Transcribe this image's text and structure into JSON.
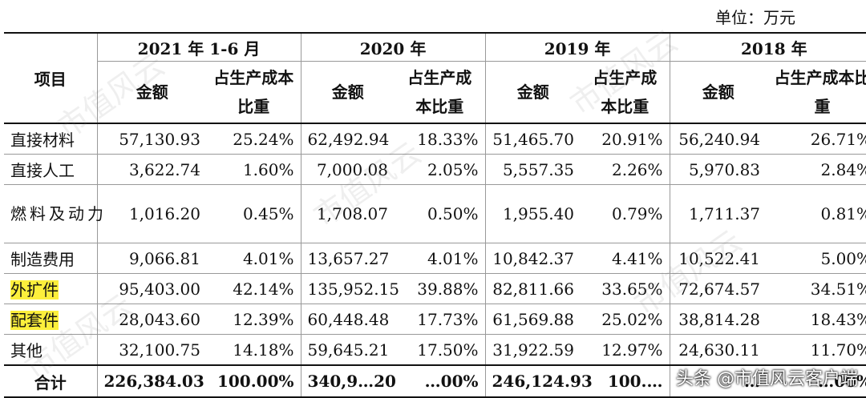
{
  "unit_label": "单位：万元",
  "header": {
    "item_label": "项目",
    "periods": [
      "2021 年 1-6 月",
      "2020 年",
      "2019 年",
      "2018 年"
    ],
    "amount_label": "金额",
    "ratio_label": "占生产成本比重"
  },
  "rows": [
    {
      "name": "直接材料",
      "values": [
        "57,130.93",
        "25.24%",
        "62,492.94",
        "18.33%",
        "51,465.70",
        "20.91%",
        "56,240.94",
        "26.71%"
      ]
    },
    {
      "name": "直接人工",
      "values": [
        "3,622.74",
        "1.60%",
        "7,000.08",
        "2.05%",
        "5,557.35",
        "2.26%",
        "5,970.83",
        "2.84%"
      ]
    },
    {
      "name": "燃料及动力",
      "values": [
        "1,016.20",
        "0.45%",
        "1,708.07",
        "0.50%",
        "1,955.40",
        "0.79%",
        "1,711.37",
        "0.81%"
      ]
    },
    {
      "name": "制造费用",
      "values": [
        "9,066.81",
        "4.01%",
        "13,657.27",
        "4.01%",
        "10,842.37",
        "4.41%",
        "10,522.41",
        "5.00%"
      ]
    },
    {
      "name": "外扩件",
      "values": [
        "95,403.00",
        "42.14%",
        "135,952.15",
        "39.88%",
        "82,811.66",
        "33.65%",
        "72,674.57",
        "34.51%"
      ]
    },
    {
      "name": "配套件",
      "values": [
        "28,043.60",
        "12.39%",
        "60,448.48",
        "17.73%",
        "61,569.88",
        "25.02%",
        "38,814.28",
        "18.43%"
      ]
    },
    {
      "name": "其他",
      "values": [
        "32,100.75",
        "14.18%",
        "59,645.21",
        "17.50%",
        "31,922.59",
        "12.97%",
        "24,630.11",
        "11.70%"
      ]
    }
  ],
  "total": {
    "name": "合计",
    "values": [
      "226,384.03",
      "100.00%",
      "340,9…20",
      "…00%",
      "246,124.93",
      "100.…",
      "…",
      "…00%"
    ]
  },
  "watermark": "市值风云",
  "footer_watermark": "头条 @市值风云客户端",
  "colors": {
    "highlight": "#fcef3c",
    "border": "#111111"
  }
}
